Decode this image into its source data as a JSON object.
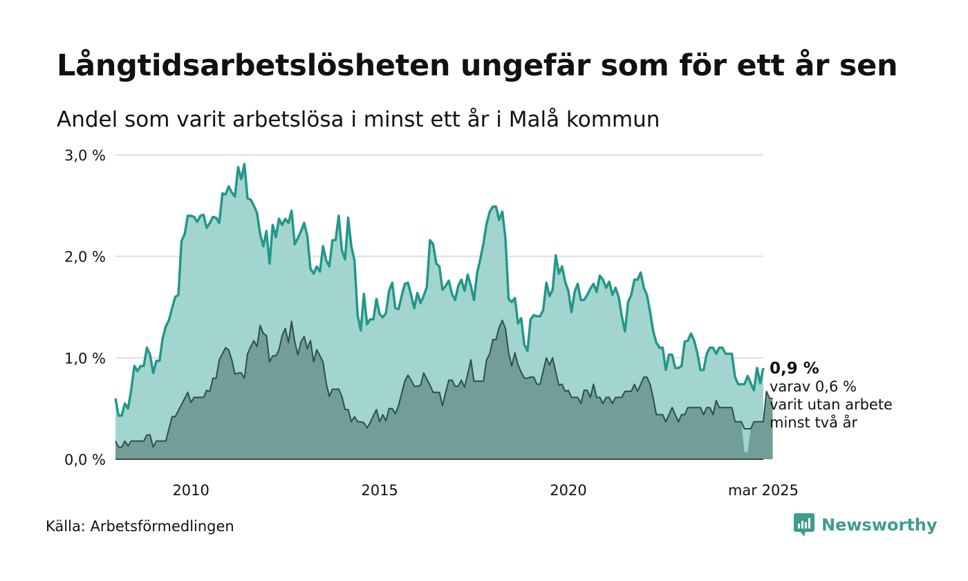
{
  "title": "Långtidsarbetslösheten ungefär som för ett år sen",
  "subtitle": "Andel som varit arbetslösa i minst ett år i Malå kommun",
  "source": "Källa: Arbetsförmedlingen",
  "brand": {
    "name": "Newsworthy",
    "icon": "newsworthy-logo-icon"
  },
  "colors": {
    "line_main": "#22978a",
    "area_main": "#a3d5d0",
    "line_sub": "#2e4e48",
    "area_sub": "#729e97",
    "grid": "#dddddd",
    "brand": "#3f9c8f"
  },
  "annotation": {
    "value": "0,9 %",
    "lines": [
      "varav 0,6 %",
      "varit utan arbete",
      "minst två år"
    ]
  },
  "chart_data": {
    "type": "area",
    "x_start": "2008-01",
    "x_end": "2025-03",
    "frequency": "monthly",
    "y_ticks": [
      "0,0 %",
      "1,0 %",
      "2,0 %",
      "3,0 %"
    ],
    "y_tick_values": [
      0,
      1,
      2,
      3
    ],
    "x_ticks": [
      "2010",
      "2015",
      "2020",
      "mar 2025"
    ],
    "x_tick_dates": [
      "2010-01",
      "2015-01",
      "2020-01",
      "2025-03"
    ],
    "ylim": [
      0,
      3
    ],
    "grid": true,
    "series": [
      {
        "values": [
          0.6,
          0.43,
          0.43,
          0.55,
          0.5,
          0.68,
          0.92,
          0.87,
          0.92,
          0.92,
          1.1,
          1.03,
          0.85,
          0.97,
          0.97,
          1.19,
          1.31,
          1.37,
          1.49,
          1.6,
          1.62,
          2.15,
          2.22,
          2.4,
          2.4,
          2.39,
          2.34,
          2.4,
          2.41,
          2.28,
          2.33,
          2.39,
          2.38,
          2.33,
          2.62,
          2.61,
          2.69,
          2.63,
          2.59,
          2.88,
          2.76,
          2.91,
          2.57,
          2.56,
          2.5,
          2.43,
          2.22,
          2.1,
          2.25,
          1.93,
          2.31,
          2.19,
          2.37,
          2.31,
          2.37,
          2.33,
          2.45,
          2.12,
          2.18,
          2.25,
          2.33,
          2.2,
          1.88,
          1.83,
          1.9,
          1.85,
          2.1,
          1.96,
          1.9,
          2.16,
          2.16,
          2.4,
          2.06,
          1.97,
          2.38,
          2.1,
          1.96,
          1.42,
          1.27,
          1.63,
          1.33,
          1.38,
          1.38,
          1.58,
          1.43,
          1.4,
          1.44,
          1.66,
          1.74,
          1.49,
          1.48,
          1.61,
          1.73,
          1.74,
          1.62,
          1.49,
          1.64,
          1.54,
          1.61,
          1.7,
          2.16,
          2.12,
          1.93,
          1.9,
          1.67,
          1.71,
          1.76,
          1.63,
          1.57,
          1.71,
          1.77,
          1.66,
          1.82,
          1.71,
          1.57,
          1.84,
          1.97,
          2.13,
          2.32,
          2.44,
          2.49,
          2.49,
          2.36,
          2.44,
          2.18,
          1.58,
          1.55,
          1.59,
          1.34,
          1.39,
          1.13,
          1.07,
          1.38,
          1.42,
          1.41,
          1.41,
          1.47,
          1.74,
          1.61,
          1.67,
          2.01,
          1.83,
          1.9,
          1.75,
          1.66,
          1.45,
          1.65,
          1.73,
          1.57,
          1.57,
          1.62,
          1.68,
          1.73,
          1.65,
          1.81,
          1.77,
          1.69,
          1.75,
          1.62,
          1.69,
          1.6,
          1.41,
          1.26,
          1.55,
          1.62,
          1.77,
          1.77,
          1.84,
          1.69,
          1.62,
          1.45,
          1.26,
          1.15,
          1.1,
          1.1,
          0.88,
          1.03,
          1.03,
          0.9,
          0.9,
          0.92,
          1.16,
          1.17,
          1.24,
          1.17,
          1.05,
          0.88,
          0.88,
          1.04,
          1.1,
          1.1,
          1.04,
          1.1,
          1.1,
          1.04,
          1.04,
          1.04,
          0.81,
          0.74,
          0.74,
          0.74,
          0.82,
          0.75,
          0.68,
          0.9,
          0.75,
          0.9
        ]
      },
      {
        "values": [
          0.18,
          0.12,
          0.12,
          0.18,
          0.13,
          0.18,
          0.18,
          0.18,
          0.18,
          0.18,
          0.24,
          0.24,
          0.12,
          0.18,
          0.18,
          0.18,
          0.18,
          0.3,
          0.42,
          0.42,
          0.48,
          0.54,
          0.6,
          0.66,
          0.56,
          0.61,
          0.61,
          0.61,
          0.61,
          0.68,
          0.67,
          0.8,
          0.8,
          0.98,
          1.04,
          1.1,
          1.08,
          0.98,
          0.84,
          0.85,
          0.85,
          0.8,
          1.04,
          1.11,
          1.17,
          1.11,
          1.32,
          1.24,
          1.22,
          0.96,
          1.02,
          1.02,
          1.08,
          1.22,
          1.29,
          1.15,
          1.36,
          1.16,
          1.03,
          1.16,
          1.21,
          1.09,
          1.17,
          0.96,
          1.08,
          1.02,
          0.96,
          0.75,
          0.62,
          0.69,
          0.69,
          0.69,
          0.62,
          0.49,
          0.49,
          0.37,
          0.42,
          0.37,
          0.37,
          0.36,
          0.31,
          0.36,
          0.43,
          0.49,
          0.37,
          0.44,
          0.38,
          0.5,
          0.5,
          0.45,
          0.53,
          0.65,
          0.77,
          0.83,
          0.78,
          0.72,
          0.72,
          0.73,
          0.85,
          0.79,
          0.73,
          0.66,
          0.66,
          0.66,
          0.53,
          0.66,
          0.78,
          0.78,
          0.72,
          0.72,
          0.78,
          0.71,
          0.84,
          0.98,
          0.77,
          0.77,
          0.77,
          0.77,
          0.98,
          1.04,
          1.18,
          1.18,
          1.3,
          1.37,
          1.29,
          1.05,
          0.92,
          1.05,
          0.93,
          0.86,
          0.8,
          0.8,
          0.81,
          0.81,
          0.74,
          0.74,
          0.87,
          1.0,
          0.93,
          1.0,
          0.86,
          0.73,
          0.74,
          0.67,
          0.68,
          0.61,
          0.61,
          0.61,
          0.55,
          0.68,
          0.68,
          0.61,
          0.74,
          0.61,
          0.61,
          0.55,
          0.61,
          0.61,
          0.55,
          0.61,
          0.61,
          0.61,
          0.67,
          0.67,
          0.67,
          0.74,
          0.67,
          0.74,
          0.81,
          0.81,
          0.74,
          0.6,
          0.44,
          0.44,
          0.44,
          0.37,
          0.44,
          0.51,
          0.44,
          0.37,
          0.44,
          0.44,
          0.51,
          0.51,
          0.51,
          0.51,
          0.51,
          0.44,
          0.51,
          0.51,
          0.44,
          0.58,
          0.51,
          0.51,
          0.51,
          0.51,
          0.51,
          0.37,
          0.37,
          0.37,
          0.3,
          0.3,
          0.3,
          0.37,
          0.37,
          0.37,
          0.37,
          0.67,
          0.6,
          0.6
        ],
        "fill_values_note_free": true,
        "fill_values": [
          0.18,
          0.12,
          0.12,
          0.18,
          0.13,
          0.18,
          0.18,
          0.18,
          0.18,
          0.18,
          0.24,
          0.24,
          0.12,
          0.18,
          0.18,
          0.18,
          0.18,
          0.3,
          0.42,
          0.42,
          0.48,
          0.54,
          0.6,
          0.66,
          0.56,
          0.61,
          0.61,
          0.61,
          0.61,
          0.68,
          0.67,
          0.8,
          0.8,
          0.98,
          1.04,
          1.1,
          1.08,
          0.98,
          0.84,
          0.85,
          0.85,
          0.8,
          1.04,
          1.11,
          1.17,
          1.11,
          1.32,
          1.24,
          1.22,
          0.96,
          1.02,
          1.02,
          1.08,
          1.22,
          1.29,
          1.15,
          1.36,
          1.16,
          1.03,
          1.16,
          1.21,
          1.09,
          1.17,
          0.96,
          1.08,
          1.02,
          0.96,
          0.75,
          0.62,
          0.69,
          0.69,
          0.69,
          0.62,
          0.49,
          0.49,
          0.37,
          0.42,
          0.37,
          0.37,
          0.36,
          0.31,
          0.36,
          0.43,
          0.49,
          0.37,
          0.44,
          0.38,
          0.5,
          0.5,
          0.45,
          0.53,
          0.65,
          0.77,
          0.83,
          0.78,
          0.72,
          0.72,
          0.73,
          0.85,
          0.79,
          0.73,
          0.66,
          0.66,
          0.66,
          0.53,
          0.66,
          0.78,
          0.78,
          0.72,
          0.72,
          0.78,
          0.71,
          0.84,
          0.98,
          0.77,
          0.77,
          0.77,
          0.77,
          0.98,
          1.04,
          1.18,
          1.18,
          1.3,
          1.37,
          1.29,
          1.05,
          0.92,
          1.05,
          0.93,
          0.86,
          0.8,
          0.8,
          0.81,
          0.81,
          0.74,
          0.74,
          0.87,
          1.0,
          0.93,
          1.0,
          0.86,
          0.73,
          0.74,
          0.67,
          0.68,
          0.61,
          0.61,
          0.61,
          0.55,
          0.68,
          0.68,
          0.61,
          0.74,
          0.61,
          0.61,
          0.55,
          0.61,
          0.61,
          0.55,
          0.61,
          0.61,
          0.61,
          0.67,
          0.67,
          0.67,
          0.74,
          0.67,
          0.74,
          0.81,
          0.81,
          0.74,
          0.6,
          0.44,
          0.44,
          0.44,
          0.37,
          0.44,
          0.51,
          0.44,
          0.37,
          0.44,
          0.44,
          0.51,
          0.51,
          0.51,
          0.51,
          0.51,
          0.44,
          0.51,
          0.51,
          0.44,
          0.58,
          0.51,
          0.51,
          0.51,
          0.51,
          0.51,
          0.37,
          0.37,
          0.37,
          0.07,
          0.07,
          0.3,
          0.37,
          0.37,
          0.37,
          0.37,
          0.67,
          0.6,
          0.6
        ]
      }
    ]
  }
}
